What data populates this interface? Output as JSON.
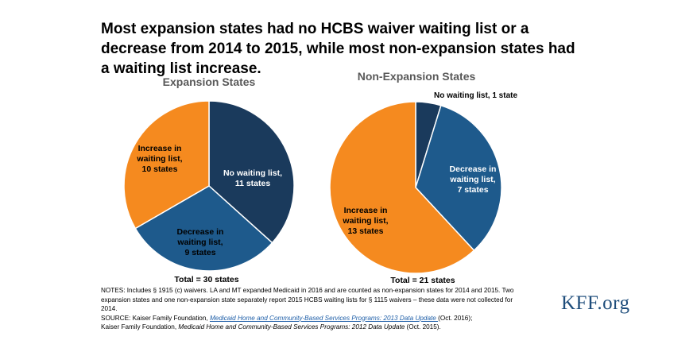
{
  "title": "Most expansion states had no HCBS waiver waiting list or a decrease from 2014 to 2015, while most non-expansion states had a waiting list increase.",
  "colors": {
    "no_waiting_list": "#1a3a5c",
    "decrease": "#1e5a8c",
    "increase": "#f58a1f",
    "label_dark": "#000000",
    "label_light": "#ffffff"
  },
  "chart_data": [
    {
      "type": "pie",
      "title": "Expansion States",
      "total_label": "Total = 30 states",
      "slices": [
        {
          "category": "No waiting list",
          "value": 11,
          "label_lines": [
            "No waiting list,",
            "11 states"
          ],
          "color": "#1a3a5c"
        },
        {
          "category": "Decrease in waiting list",
          "value": 9,
          "label_lines": [
            "Decrease in",
            "waiting list,",
            "9 states"
          ],
          "color": "#1e5a8c"
        },
        {
          "category": "Increase in waiting list",
          "value": 10,
          "label_lines": [
            "Increase in",
            "waiting list,",
            "10 states"
          ],
          "color": "#f58a1f"
        }
      ]
    },
    {
      "type": "pie",
      "title": "Non-Expansion States",
      "total_label": "Total = 21 states",
      "slices": [
        {
          "category": "No waiting list",
          "value": 1,
          "label_lines": [
            "No waiting list, 1 state"
          ],
          "color": "#1a3a5c"
        },
        {
          "category": "Decrease in waiting list",
          "value": 7,
          "label_lines": [
            "Decrease in",
            "waiting list,",
            "7 states"
          ],
          "color": "#1e5a8c"
        },
        {
          "category": "Increase in waiting list",
          "value": 13,
          "label_lines": [
            "Increase in",
            "waiting list,",
            "13 states"
          ],
          "color": "#f58a1f"
        }
      ]
    }
  ],
  "notes": {
    "line1": "NOTES:  Includes § 1915 (c) waivers.  LA and MT expanded Medicaid in 2016 and are counted as non-expansion states for 2014 and 2015.  Two expansion states and one non-expansion state separately report 2015 HCBS waiting lists for § 1115 waivers – these data were not collected for 2014.",
    "source_prefix": "SOURCE: Kaiser Family Foundation, ",
    "source_link": "Medicaid Home and Community-Based Services Programs:  2013 Data Update ",
    "source_after_link": "(Oct. 2016);",
    "source2_prefix": "Kaiser Family Foundation, ",
    "source2_italic": "Medicaid Home and Community-Based Services Programs:  2012 Data Update",
    "source2_suffix": " (Oct. 2015)."
  },
  "logo": "KFF.org"
}
